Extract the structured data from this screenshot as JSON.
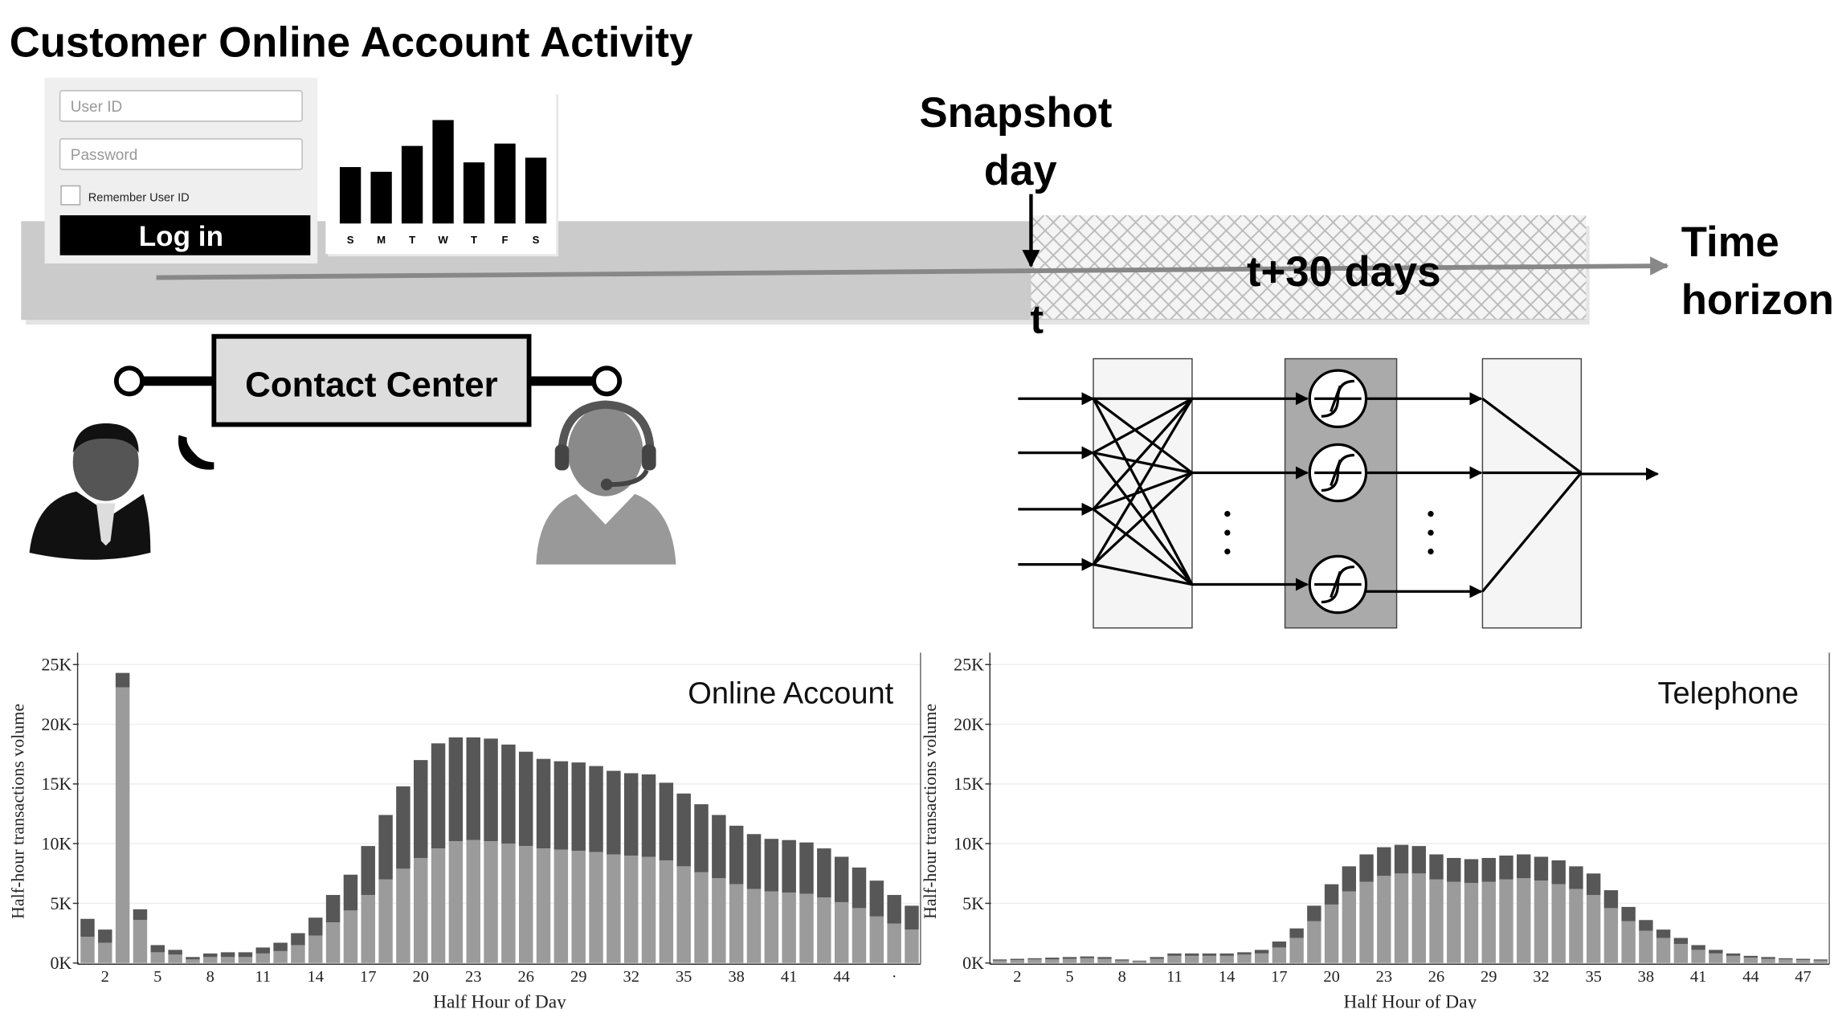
{
  "title": "Customer Online Account Activity",
  "login": {
    "user_id": "User ID",
    "password": "Password",
    "remember": "Remember User ID",
    "button": "Log in"
  },
  "timeline": {
    "snapshot": [
      "Snapshot",
      "day"
    ],
    "start": "t",
    "window": "t+30 days",
    "horizon": [
      "Time",
      "horizon"
    ]
  },
  "contact_center": "Contact Center",
  "chart_data": [
    {
      "type": "bar",
      "categories": [
        "S",
        "M",
        "T",
        "W",
        "T",
        "F",
        "S"
      ],
      "values": [
        48,
        44,
        66,
        88,
        52,
        68,
        56
      ],
      "color": "#000000"
    },
    {
      "type": "bar",
      "stacked": true,
      "title": "Online Account",
      "xlabel": "Half Hour of Day",
      "ylabel": "Half-hour transactions volume",
      "categories": [
        null,
        "2",
        null,
        null,
        "5",
        null,
        null,
        "8",
        null,
        null,
        "11",
        null,
        null,
        "14",
        null,
        null,
        "17",
        null,
        null,
        "20",
        null,
        null,
        "23",
        null,
        null,
        "26",
        null,
        null,
        "29",
        null,
        null,
        "32",
        null,
        null,
        "35",
        null,
        null,
        "38",
        null,
        null,
        "41",
        null,
        null,
        "44",
        null,
        null,
        "·",
        null
      ],
      "series": [
        {
          "color": "#9b9b9b",
          "values": [
            2200,
            1700,
            23100,
            3600,
            900,
            700,
            300,
            500,
            500,
            500,
            800,
            1000,
            1500,
            2300,
            3400,
            4400,
            5700,
            7000,
            7900,
            8800,
            9600,
            10200,
            10300,
            10200,
            10000,
            9800,
            9600,
            9500,
            9400,
            9300,
            9100,
            9000,
            8900,
            8600,
            8100,
            7600,
            7100,
            6600,
            6200,
            6000,
            5900,
            5800,
            5500,
            5100,
            4600,
            3900,
            3300,
            2800
          ]
        },
        {
          "color": "#575757",
          "values": [
            1500,
            1100,
            1200,
            900,
            600,
            400,
            200,
            300,
            400,
            400,
            500,
            700,
            1000,
            1500,
            2300,
            3000,
            4100,
            5400,
            6900,
            8200,
            8800,
            8700,
            8600,
            8600,
            8300,
            7900,
            7500,
            7400,
            7400,
            7200,
            7000,
            6900,
            6900,
            6500,
            6100,
            5700,
            5300,
            4900,
            4600,
            4400,
            4400,
            4300,
            4100,
            3800,
            3400,
            3000,
            2400,
            2000
          ]
        }
      ],
      "ylim": [
        0,
        26000
      ],
      "yticks": [
        {
          "value": 0,
          "label": "0K"
        },
        {
          "value": 5000,
          "label": "5K"
        },
        {
          "value": 10000,
          "label": "10K"
        },
        {
          "value": 15000,
          "label": "15K"
        },
        {
          "value": 20000,
          "label": "20K"
        },
        {
          "value": 25000,
          "label": "25K"
        }
      ],
      "grid": true
    },
    {
      "type": "bar",
      "stacked": true,
      "title": "Telephone",
      "xlabel": "Half Hour of Day",
      "ylabel": "Half-hour transactions volume",
      "categories": [
        null,
        "2",
        null,
        null,
        "5",
        null,
        null,
        "8",
        null,
        null,
        "11",
        null,
        null,
        "14",
        null,
        null,
        "17",
        null,
        null,
        "20",
        null,
        null,
        "23",
        null,
        null,
        "26",
        null,
        null,
        "29",
        null,
        null,
        "32",
        null,
        null,
        "35",
        null,
        null,
        "38",
        null,
        null,
        "41",
        null,
        null,
        "44",
        null,
        null,
        "47",
        null
      ],
      "series": [
        {
          "color": "#9b9b9b",
          "values": [
            200,
            250,
            300,
            300,
            350,
            400,
            350,
            200,
            150,
            350,
            600,
            600,
            600,
            600,
            700,
            800,
            1300,
            2100,
            3500,
            4900,
            6000,
            6800,
            7300,
            7500,
            7500,
            7000,
            6800,
            6700,
            6800,
            7000,
            7100,
            6900,
            6600,
            6200,
            5700,
            4600,
            3500,
            2700,
            2100,
            1600,
            1100,
            800,
            600,
            450,
            350,
            300,
            250,
            200
          ]
        },
        {
          "color": "#575757",
          "values": [
            100,
            100,
            100,
            150,
            150,
            150,
            150,
            100,
            50,
            150,
            200,
            200,
            200,
            200,
            200,
            300,
            500,
            800,
            1300,
            1700,
            2100,
            2300,
            2400,
            2400,
            2300,
            2100,
            2000,
            2000,
            2000,
            2000,
            2000,
            2000,
            2000,
            1900,
            1800,
            1500,
            1200,
            900,
            700,
            500,
            400,
            300,
            200,
            150,
            150,
            100,
            100,
            100
          ]
        }
      ],
      "ylim": [
        0,
        26000
      ],
      "yticks": [
        {
          "value": 0,
          "label": "0K"
        },
        {
          "value": 5000,
          "label": "5K"
        },
        {
          "value": 10000,
          "label": "10K"
        },
        {
          "value": 15000,
          "label": "15K"
        },
        {
          "value": 20000,
          "label": "20K"
        },
        {
          "value": 25000,
          "label": "25K"
        }
      ],
      "grid": true
    }
  ]
}
